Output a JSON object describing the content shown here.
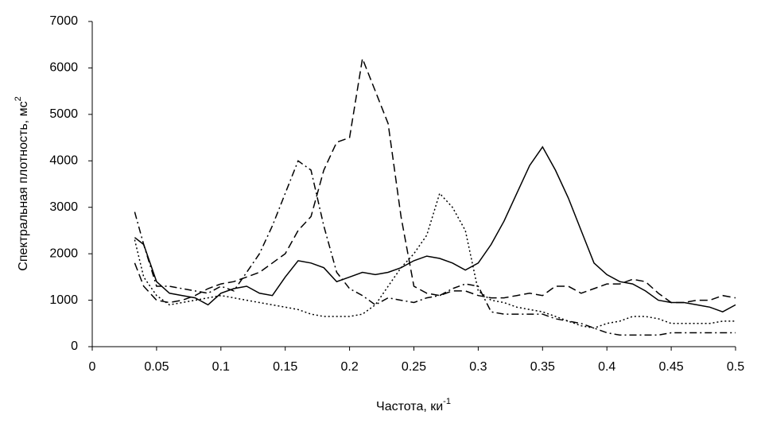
{
  "chart_data": {
    "type": "line",
    "xlabel": "Частота, ки",
    "xlabel_sup": "-1",
    "ylabel": "Спектральная плотность, мс",
    "ylabel_sup": "2",
    "x": [
      0.033,
      0.04,
      0.05,
      0.06,
      0.07,
      0.08,
      0.09,
      0.1,
      0.11,
      0.12,
      0.13,
      0.14,
      0.15,
      0.16,
      0.17,
      0.18,
      0.19,
      0.2,
      0.21,
      0.22,
      0.23,
      0.24,
      0.25,
      0.26,
      0.27,
      0.28,
      0.29,
      0.3,
      0.31,
      0.32,
      0.33,
      0.34,
      0.35,
      0.36,
      0.37,
      0.38,
      0.39,
      0.4,
      0.41,
      0.42,
      0.43,
      0.44,
      0.45,
      0.46,
      0.47,
      0.48,
      0.49,
      0.5
    ],
    "series": [
      {
        "color": "#000000",
        "dash": "solid",
        "values": [
          2350,
          2200,
          1400,
          1150,
          1100,
          1050,
          900,
          1150,
          1250,
          1300,
          1150,
          1100,
          1500,
          1850,
          1800,
          1700,
          1400,
          1500,
          1600,
          1550,
          1600,
          1700,
          1850,
          1950,
          1900,
          1800,
          1650,
          1800,
          2200,
          2700,
          3300,
          3900,
          4300,
          3800,
          3200,
          2500,
          1800,
          1550,
          1400,
          1350,
          1200,
          1000,
          950,
          950,
          900,
          850,
          750,
          900
        ]
      },
      {
        "color": "#000000",
        "dash": "dashed",
        "values": [
          1800,
          1300,
          1000,
          950,
          1000,
          1100,
          1250,
          1350,
          1400,
          1500,
          1600,
          1800,
          2000,
          2500,
          2800,
          3800,
          4400,
          4500,
          6200,
          5500,
          4800,
          2800,
          1300,
          1150,
          1100,
          1200,
          1200,
          1100,
          1050,
          1050,
          1100,
          1150,
          1100,
          1300,
          1300,
          1150,
          1250,
          1350,
          1350,
          1450,
          1400,
          1150,
          950,
          950,
          1000,
          1000,
          1100,
          1050
        ]
      },
      {
        "color": "#000000",
        "dash": "dashdot",
        "values": [
          2900,
          2200,
          1300,
          1300,
          1250,
          1200,
          1150,
          1300,
          1200,
          1600,
          2000,
          2600,
          3300,
          4000,
          3800,
          2600,
          1600,
          1250,
          1100,
          900,
          1050,
          1000,
          950,
          1050,
          1100,
          1250,
          1350,
          1300,
          750,
          700,
          700,
          700,
          700,
          600,
          550,
          500,
          400,
          300,
          250,
          250,
          250,
          250,
          300,
          300,
          300,
          300,
          300,
          300
        ]
      },
      {
        "color": "#000000",
        "dash": "dotted",
        "values": [
          2300,
          1500,
          1100,
          900,
          950,
          1000,
          1050,
          1100,
          1050,
          1000,
          950,
          900,
          850,
          800,
          700,
          650,
          650,
          650,
          700,
          900,
          1300,
          1700,
          2000,
          2400,
          3300,
          3000,
          2500,
          1200,
          1000,
          950,
          850,
          800,
          750,
          650,
          550,
          450,
          400,
          500,
          550,
          650,
          650,
          600,
          500,
          500,
          500,
          500,
          550,
          550
        ]
      }
    ],
    "xlim": [
      0,
      0.5
    ],
    "xticks": [
      0,
      0.05,
      0.1,
      0.15,
      0.2,
      0.25,
      0.3,
      0.35,
      0.4,
      0.45,
      0.5
    ],
    "ylim": [
      0,
      7000
    ],
    "yticks": [
      0,
      1000,
      2000,
      3000,
      4000,
      5000,
      6000,
      7000
    ],
    "grid": false
  }
}
